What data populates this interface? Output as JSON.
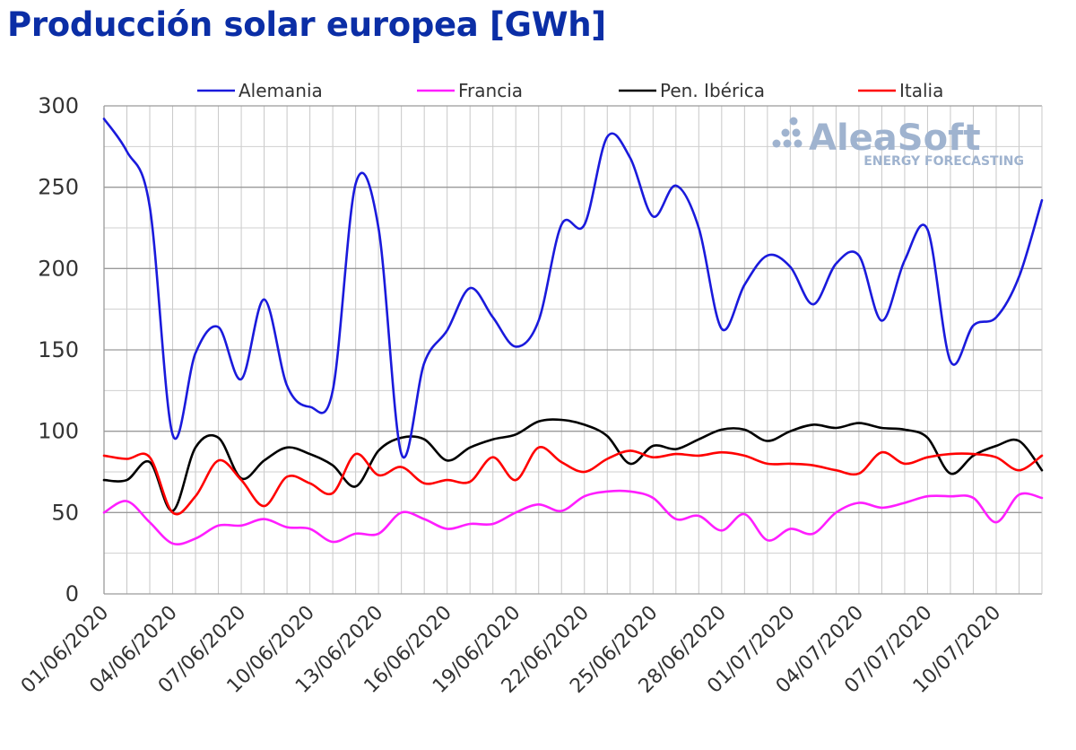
{
  "title": "Producción solar europea [GWh]",
  "logo": {
    "name": "AleaSoft",
    "tagline": "ENERGY FORECASTING",
    "color": "#9fb3cf"
  },
  "chart_data": {
    "type": "line",
    "title": "Producción solar europea [GWh]",
    "xlabel": "",
    "ylabel": "",
    "ylim": [
      0,
      300
    ],
    "yticks": [
      0,
      50,
      100,
      150,
      200,
      250,
      300
    ],
    "grid": true,
    "legend_position": "top",
    "x": [
      "01/06/2020",
      "02/06/2020",
      "03/06/2020",
      "04/06/2020",
      "05/06/2020",
      "06/06/2020",
      "07/06/2020",
      "08/06/2020",
      "09/06/2020",
      "10/06/2020",
      "11/06/2020",
      "12/06/2020",
      "13/06/2020",
      "14/06/2020",
      "15/06/2020",
      "16/06/2020",
      "17/06/2020",
      "18/06/2020",
      "19/06/2020",
      "20/06/2020",
      "21/06/2020",
      "22/06/2020",
      "23/06/2020",
      "24/06/2020",
      "25/06/2020",
      "26/06/2020",
      "27/06/2020",
      "28/06/2020",
      "29/06/2020",
      "30/06/2020",
      "01/07/2020",
      "02/07/2020",
      "03/07/2020",
      "04/07/2020",
      "05/07/2020",
      "06/07/2020",
      "07/07/2020",
      "08/07/2020",
      "09/07/2020",
      "10/07/2020",
      "11/07/2020",
      "12/07/2020"
    ],
    "xtick_labels": [
      "01/06/2020",
      "04/06/2020",
      "07/06/2020",
      "10/06/2020",
      "13/06/2020",
      "16/06/2020",
      "19/06/2020",
      "22/06/2020",
      "25/06/2020",
      "28/06/2020",
      "01/07/2020",
      "04/07/2020",
      "07/07/2020",
      "10/07/2020"
    ],
    "series": [
      {
        "name": "Alemania",
        "color": "#1a1adc",
        "values": [
          292,
          272,
          238,
          98,
          148,
          164,
          132,
          181,
          128,
          115,
          125,
          252,
          225,
          86,
          142,
          162,
          188,
          170,
          152,
          168,
          227,
          227,
          281,
          268,
          232,
          251,
          225,
          163,
          190,
          208,
          201,
          178,
          203,
          208,
          168,
          205,
          224,
          143,
          165,
          170,
          195,
          242
        ]
      },
      {
        "name": "Francia",
        "color": "#ff1eff",
        "values": [
          50,
          57,
          44,
          31,
          34,
          42,
          42,
          46,
          41,
          40,
          32,
          37,
          37,
          50,
          46,
          40,
          43,
          43,
          50,
          55,
          51,
          60,
          63,
          63,
          59,
          46,
          48,
          39,
          49,
          33,
          40,
          37,
          50,
          56,
          53,
          56,
          60,
          60,
          59,
          44,
          61,
          59
        ]
      },
      {
        "name": "Pen. Ibérica",
        "color": "#000000",
        "values": [
          70,
          70,
          81,
          51,
          90,
          96,
          71,
          82,
          90,
          86,
          79,
          66,
          88,
          96,
          95,
          82,
          90,
          95,
          98,
          106,
          107,
          104,
          97,
          80,
          91,
          89,
          95,
          101,
          101,
          94,
          100,
          104,
          102,
          105,
          102,
          101,
          96,
          74,
          85,
          91,
          94,
          76
        ]
      },
      {
        "name": "Italia",
        "color": "#ff0000",
        "values": [
          85,
          83,
          84,
          50,
          60,
          82,
          70,
          54,
          72,
          68,
          62,
          86,
          73,
          78,
          68,
          70,
          69,
          84,
          70,
          90,
          81,
          75,
          83,
          88,
          84,
          86,
          85,
          87,
          85,
          80,
          80,
          79,
          76,
          74,
          87,
          80,
          84,
          86,
          86,
          84,
          76,
          85
        ]
      }
    ]
  }
}
